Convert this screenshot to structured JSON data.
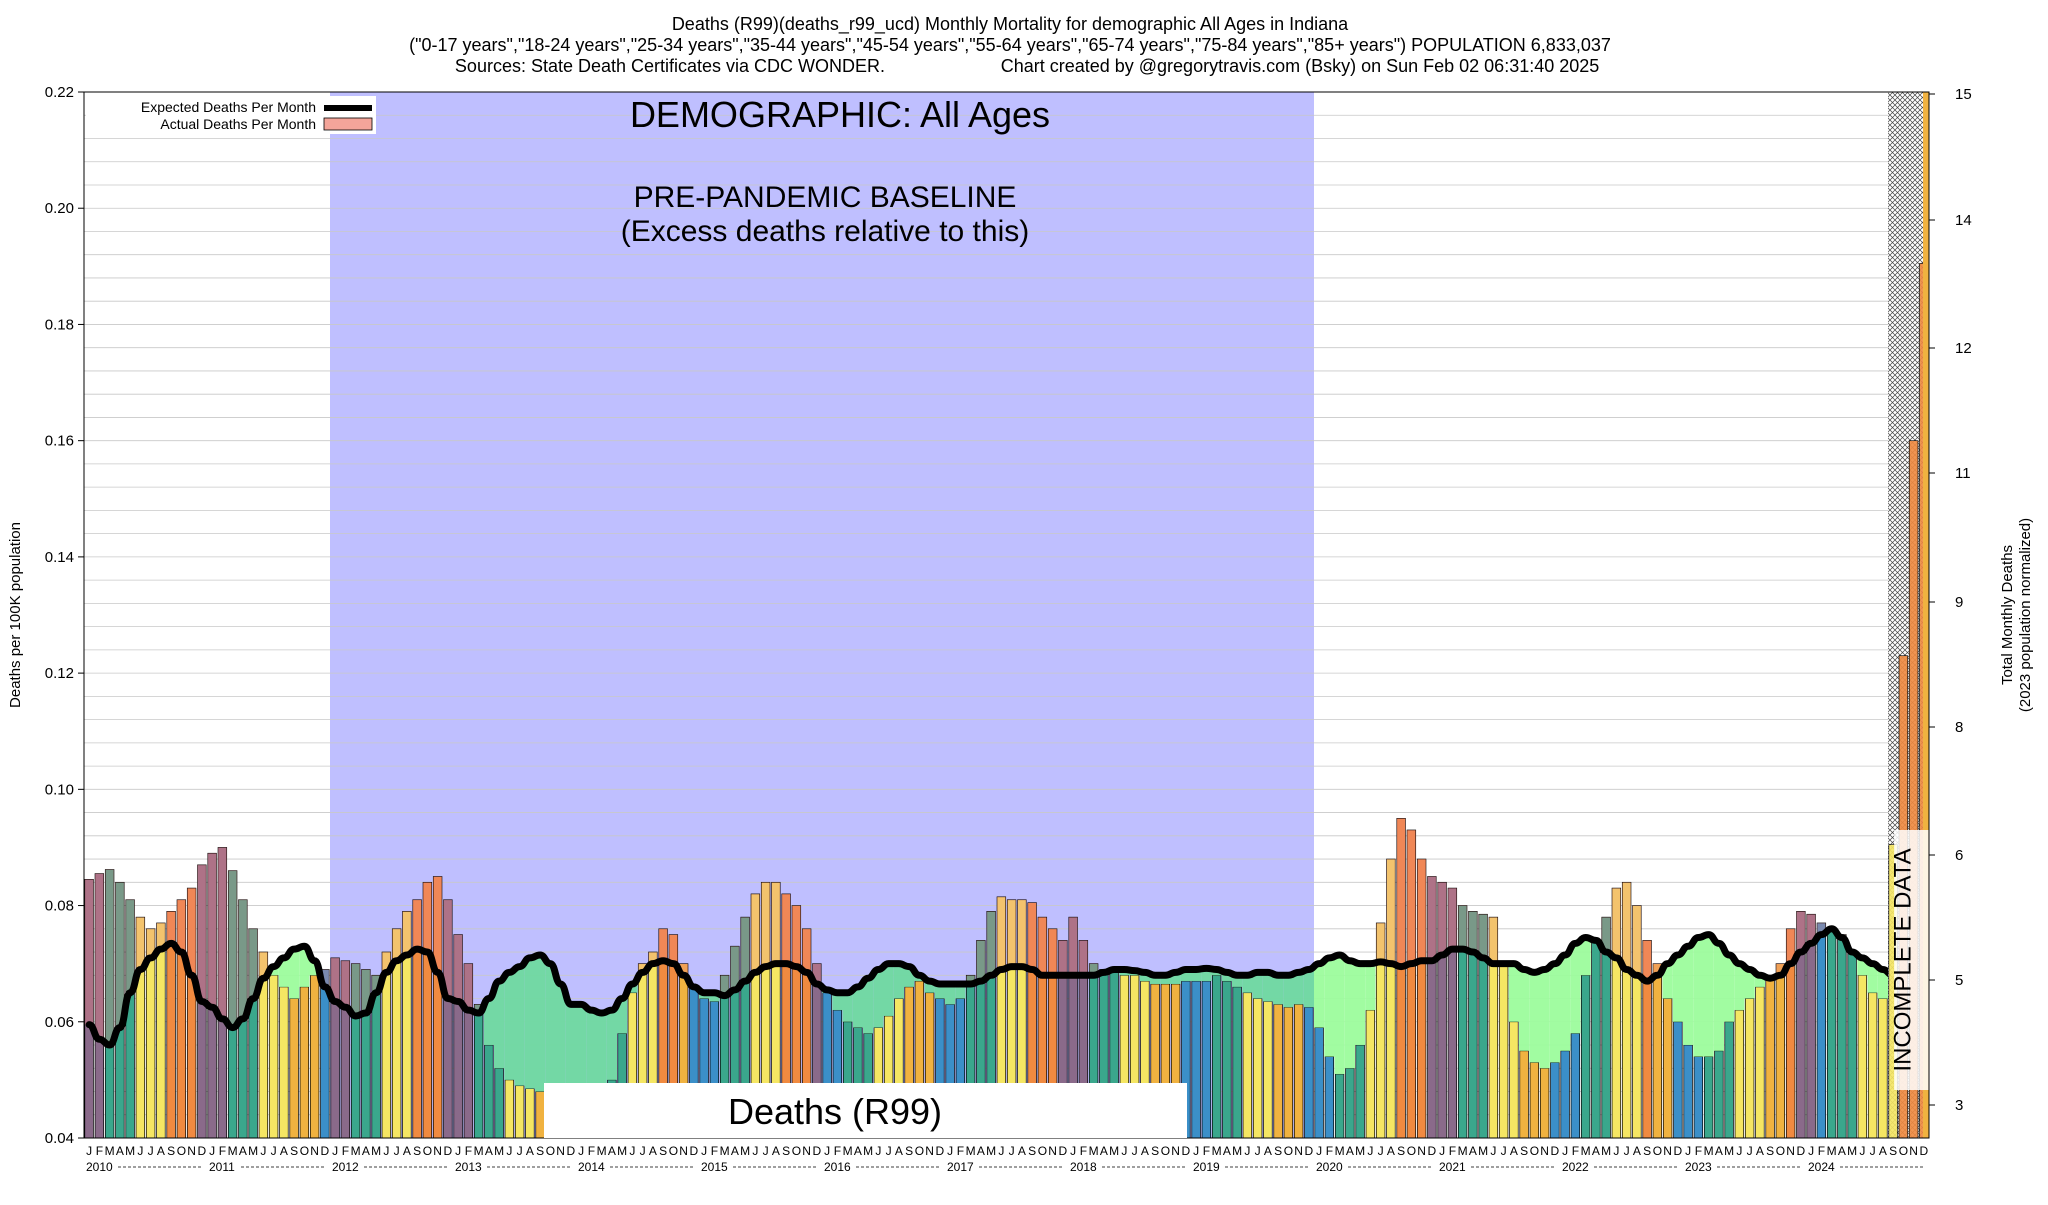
{
  "header": {
    "line1": "Deaths (R99)(deaths_r99_ucd) Monthly Mortality for demographic All Ages in Indiana",
    "line2": "(\"0-17 years\",\"18-24 years\",\"25-34 years\",\"35-44 years\",\"45-54 years\",\"55-64 years\",\"65-74 years\",\"75-84 years\",\"85+ years\") POPULATION 6,833,037",
    "line3_left": "Sources: State Death Certificates via CDC WONDER.",
    "line3_right": "Chart created by @gregorytravis.com (Bsky) on Sun Feb 02 06:31:40 2025"
  },
  "annotations": {
    "demographic": "DEMOGRAPHIC: All Ages",
    "baseline_title": "PRE-PANDEMIC BASELINE",
    "baseline_sub": "(Excess deaths relative to this)",
    "cause_label": "Deaths (R99)",
    "incomplete": "INCOMPLETE DATA"
  },
  "legend": {
    "expected": "Expected Deaths Per Month",
    "actual": "Actual Deaths Per Month"
  },
  "colors": {
    "baseline_region": "#bfbfff",
    "expected_line": "#000000",
    "actual_marker": "#f4a59a",
    "excess_fill": "#f28080",
    "deficit_fill_baseline": "#6fd9a0",
    "deficit_fill_post": "#9cfc9c",
    "season_winter": "#3b8fc8",
    "season_spring": "#3aa78c",
    "season_summer": "#f5e663",
    "season_autumn": "#f0b240",
    "excess_autumn": "#f08a40",
    "excess_winter": "#8a6a8a"
  },
  "chart_data": {
    "type": "bar",
    "start": "2010-01",
    "months": 180,
    "incomplete_from": "2024-09",
    "ylim": [
      0.04,
      0.22
    ],
    "y2lim": [
      3,
      15
    ],
    "yticks": [
      "0.04",
      "0.06",
      "0.08",
      "0.10",
      "0.12",
      "0.14",
      "0.16",
      "0.18",
      "0.20",
      "0.22"
    ],
    "y2ticks": [
      "3",
      "5",
      "6",
      "8",
      "9",
      "11",
      "12",
      "14",
      "15"
    ],
    "ylabel": "Deaths per 100K population",
    "y2label_1": "Total Monthly Deaths",
    "y2label_2": "(2023 population normalized)",
    "baseline_range": [
      "2012-01",
      "2019-12"
    ],
    "month_letters": [
      "J",
      "F",
      "M",
      "A",
      "M",
      "J",
      "J",
      "A",
      "S",
      "O",
      "N",
      "D"
    ],
    "years": [
      "2010",
      "2011",
      "2012",
      "2013",
      "2014",
      "2015",
      "2016",
      "2017",
      "2018",
      "2019",
      "2020",
      "2021",
      "2022",
      "2023",
      "2024"
    ],
    "actual": [
      0.0845,
      0.0855,
      0.0862,
      0.084,
      0.081,
      0.078,
      0.076,
      0.077,
      0.079,
      0.081,
      0.083,
      0.087,
      0.089,
      0.09,
      0.086,
      0.081,
      0.076,
      0.072,
      0.068,
      0.066,
      0.064,
      0.066,
      0.068,
      0.069,
      0.071,
      0.0705,
      0.07,
      0.069,
      0.068,
      0.072,
      0.076,
      0.079,
      0.081,
      0.084,
      0.085,
      0.081,
      0.075,
      0.07,
      0.063,
      0.056,
      0.052,
      0.05,
      0.049,
      0.0485,
      0.048,
      0.047,
      0.0445,
      0.042,
      0.04,
      0.042,
      0.045,
      0.05,
      0.058,
      0.065,
      0.07,
      0.072,
      0.076,
      0.075,
      0.07,
      0.066,
      0.064,
      0.0635,
      0.068,
      0.073,
      0.078,
      0.082,
      0.084,
      0.084,
      0.082,
      0.08,
      0.076,
      0.07,
      0.065,
      0.062,
      0.06,
      0.059,
      0.058,
      0.059,
      0.061,
      0.064,
      0.066,
      0.067,
      0.065,
      0.064,
      0.063,
      0.064,
      0.068,
      0.074,
      0.079,
      0.0815,
      0.081,
      0.081,
      0.0805,
      0.078,
      0.076,
      0.074,
      0.078,
      0.074,
      0.07,
      0.069,
      0.0685,
      0.068,
      0.068,
      0.067,
      0.0665,
      0.0665,
      0.0665,
      0.067,
      0.067,
      0.067,
      0.068,
      0.067,
      0.066,
      0.065,
      0.064,
      0.0635,
      0.063,
      0.0625,
      0.063,
      0.0625,
      0.059,
      0.054,
      0.051,
      0.052,
      0.056,
      0.062,
      0.077,
      0.088,
      0.095,
      0.093,
      0.088,
      0.085,
      0.084,
      0.083,
      0.08,
      0.079,
      0.0785,
      0.078,
      0.07,
      0.06,
      0.055,
      0.053,
      0.052,
      0.053,
      0.055,
      0.058,
      0.068,
      0.074,
      0.078,
      0.083,
      0.084,
      0.08,
      0.074,
      0.07,
      0.064,
      0.06,
      0.056,
      0.054,
      0.054,
      0.055,
      0.06,
      0.062,
      0.064,
      0.066,
      0.068,
      0.07,
      0.076,
      0.079,
      0.0785,
      0.077,
      0.076,
      0.075,
      0.072,
      0.068,
      0.065,
      0.064,
      0.065,
      0.066,
      0.068,
      0.0905
    ],
    "incomplete_values": [
      0.0905,
      0.123,
      0.16,
      0.1905
    ],
    "expected": [
      0.0595,
      0.057,
      0.056,
      0.059,
      0.065,
      0.069,
      0.071,
      0.0725,
      0.0735,
      0.072,
      0.068,
      0.0635,
      0.0625,
      0.0605,
      0.059,
      0.0605,
      0.064,
      0.0675,
      0.0695,
      0.071,
      0.0725,
      0.073,
      0.0705,
      0.066,
      0.0635,
      0.0625,
      0.061,
      0.0615,
      0.065,
      0.0685,
      0.0705,
      0.0715,
      0.0725,
      0.072,
      0.0685,
      0.064,
      0.0635,
      0.062,
      0.0615,
      0.064,
      0.067,
      0.0685,
      0.0695,
      0.071,
      0.0715,
      0.07,
      0.0665,
      0.063,
      0.063,
      0.062,
      0.0615,
      0.062,
      0.064,
      0.0665,
      0.0685,
      0.07,
      0.0705,
      0.07,
      0.068,
      0.066,
      0.065,
      0.065,
      0.0645,
      0.0655,
      0.067,
      0.0685,
      0.0695,
      0.07,
      0.07,
      0.0695,
      0.0685,
      0.0665,
      0.0655,
      0.065,
      0.065,
      0.066,
      0.0675,
      0.069,
      0.07,
      0.07,
      0.0695,
      0.068,
      0.067,
      0.0665,
      0.0665,
      0.0665,
      0.0665,
      0.067,
      0.068,
      0.069,
      0.0695,
      0.0695,
      0.069,
      0.068,
      0.068,
      0.068,
      0.068,
      0.068,
      0.068,
      0.0685,
      0.069,
      0.069,
      0.0688,
      0.0685,
      0.068,
      0.068,
      0.0685,
      0.069,
      0.069,
      0.0692,
      0.069,
      0.0685,
      0.068,
      0.068,
      0.0685,
      0.0685,
      0.068,
      0.068,
      0.0685,
      0.069,
      0.07,
      0.071,
      0.0715,
      0.0705,
      0.07,
      0.07,
      0.0703,
      0.07,
      0.0695,
      0.07,
      0.0705,
      0.0705,
      0.0715,
      0.0725,
      0.0725,
      0.072,
      0.071,
      0.07,
      0.07,
      0.07,
      0.069,
      0.0685,
      0.069,
      0.07,
      0.0715,
      0.0735,
      0.0745,
      0.074,
      0.072,
      0.071,
      0.069,
      0.068,
      0.067,
      0.068,
      0.07,
      0.0715,
      0.073,
      0.0745,
      0.075,
      0.0735,
      0.0715,
      0.07,
      0.069,
      0.068,
      0.0675,
      0.068,
      0.07,
      0.072,
      0.0735,
      0.075,
      0.076,
      0.0745,
      0.072,
      0.071,
      0.07,
      0.069,
      0.068,
      0.067,
      0.066,
      0.0655
    ]
  }
}
